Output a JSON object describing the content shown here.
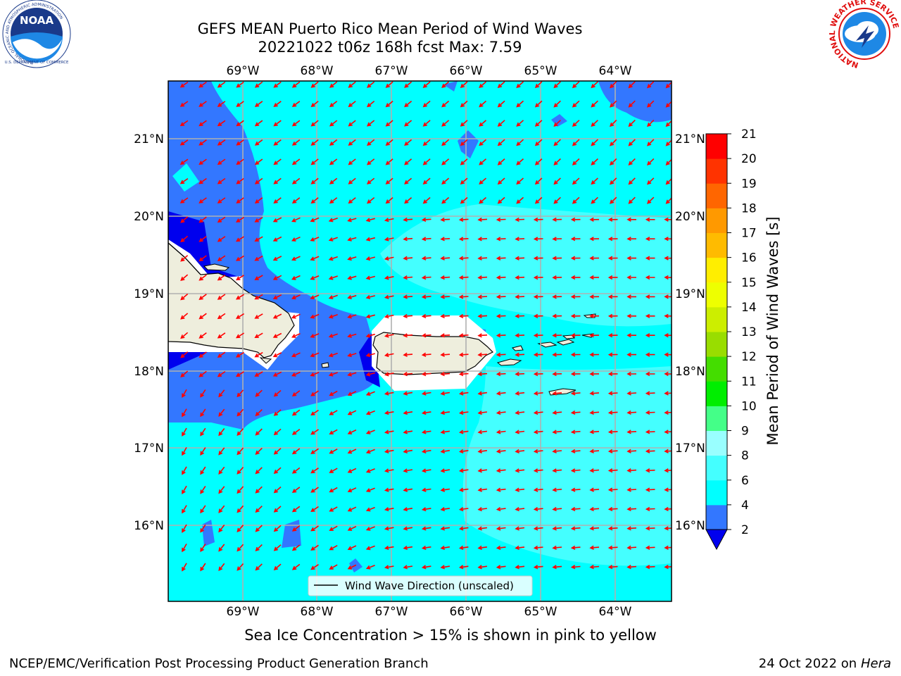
{
  "header": {
    "title_line1": "GEFS MEAN Puerto Rico Mean Period of Wind Waves",
    "title_line2": "20221022 t06z 168h fcst   Max: 7.59"
  },
  "logos": {
    "left": {
      "name": "NOAA",
      "ring_text": "NATIONAL OCEANIC AND ATMOSPHERIC ADMINISTRATION",
      "bottom_text": "U.S. DEPARTMENT OF COMMERCE"
    },
    "right": {
      "ring_text": "NATIONAL WEATHER SERVICE"
    }
  },
  "map": {
    "lon_labels": [
      "69°W",
      "68°W",
      "67°W",
      "66°W",
      "65°W",
      "64°W"
    ],
    "lat_labels": [
      "21°N",
      "20°N",
      "19°N",
      "18°N",
      "17°N",
      "16°N"
    ],
    "legend_label": "Wind Wave Direction (unscaled)",
    "colors": {
      "land": "#eeeedd",
      "ocean_4_6": "#00ffff",
      "ocean_6_8": "#44ffff",
      "ocean_2_4": "#3377ff",
      "ocean_lt2": "#0000ee",
      "arrow": "#ff0000"
    }
  },
  "colorbar": {
    "label": "Mean Period of Wind Waves [s]",
    "ticks": [
      "2",
      "4",
      "6",
      "8",
      "9",
      "10",
      "11",
      "12",
      "13",
      "14",
      "15",
      "16",
      "17",
      "18",
      "19",
      "20",
      "21"
    ],
    "colors": [
      "#0000ee",
      "#3377ff",
      "#00ffff",
      "#44ffff",
      "#99ffff",
      "#44ff88",
      "#00ee00",
      "#44dd00",
      "#99dd00",
      "#ccee00",
      "#eeff00",
      "#ffee00",
      "#ffbb00",
      "#ff9900",
      "#ff6600",
      "#ff3300",
      "#ff0000"
    ]
  },
  "caption": "Sea Ice Concentration > 15% is shown in pink to yellow",
  "footer": {
    "left": "NCEP/EMC/Verification Post Processing Product Generation Branch",
    "right_prefix": "24 Oct 2022 on ",
    "right_host": "Hera"
  }
}
